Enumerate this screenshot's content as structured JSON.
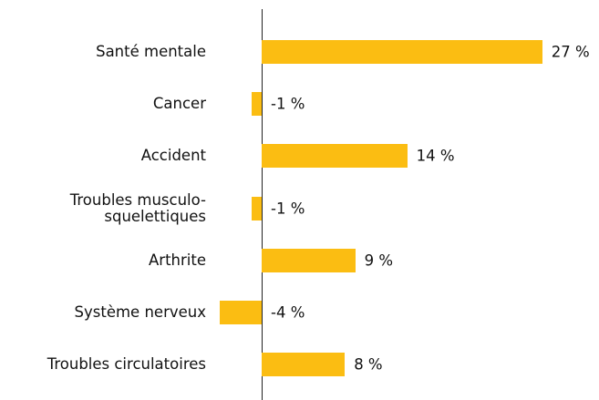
{
  "chart_data": {
    "type": "bar",
    "orientation": "horizontal",
    "categories": [
      "Santé mentale",
      "Cancer",
      "Accident",
      "Troubles musculo-\nsquelettiques",
      "Arthrite",
      "Système nerveux",
      "Troubles circulatoires"
    ],
    "values": [
      27,
      -1,
      14,
      -1,
      9,
      -4,
      8
    ],
    "value_labels": [
      "27 %",
      "-1 %",
      "14 %",
      "-1 %",
      "9 %",
      "-4 %",
      "8 %"
    ],
    "color": "#fbbd12"
  }
}
